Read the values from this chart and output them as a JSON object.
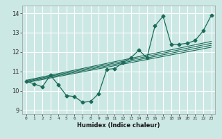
{
  "title": "",
  "xlabel": "Humidex (Indice chaleur)",
  "ylabel": "",
  "bg_color": "#cce8e4",
  "grid_color": "#ffffff",
  "line_color": "#1a6b5a",
  "xlim": [
    -0.5,
    23.5
  ],
  "ylim": [
    8.8,
    14.4
  ],
  "xticks": [
    0,
    1,
    2,
    3,
    4,
    5,
    6,
    7,
    8,
    9,
    10,
    11,
    12,
    13,
    14,
    15,
    16,
    17,
    18,
    19,
    20,
    21,
    22,
    23
  ],
  "yticks": [
    9,
    10,
    11,
    12,
    13,
    14
  ],
  "main_x": [
    0,
    1,
    2,
    3,
    4,
    5,
    6,
    7,
    8,
    9,
    10,
    11,
    12,
    13,
    14,
    15,
    16,
    17,
    18,
    19,
    20,
    21,
    22,
    23
  ],
  "main_y": [
    10.5,
    10.35,
    10.2,
    10.8,
    10.3,
    9.75,
    9.7,
    9.4,
    9.45,
    9.85,
    11.1,
    11.15,
    11.45,
    11.7,
    12.1,
    11.7,
    13.35,
    13.85,
    12.4,
    12.4,
    12.45,
    12.6,
    13.1,
    13.9
  ],
  "trend_lines": [
    {
      "x": [
        0,
        23
      ],
      "y": [
        10.42,
        12.25
      ]
    },
    {
      "x": [
        0,
        23
      ],
      "y": [
        10.46,
        12.35
      ]
    },
    {
      "x": [
        0,
        23
      ],
      "y": [
        10.5,
        12.45
      ]
    },
    {
      "x": [
        0,
        23
      ],
      "y": [
        10.54,
        12.55
      ]
    }
  ],
  "xlabel_fontsize": 6.0,
  "xtick_fontsize": 4.5,
  "ytick_fontsize": 6.0
}
